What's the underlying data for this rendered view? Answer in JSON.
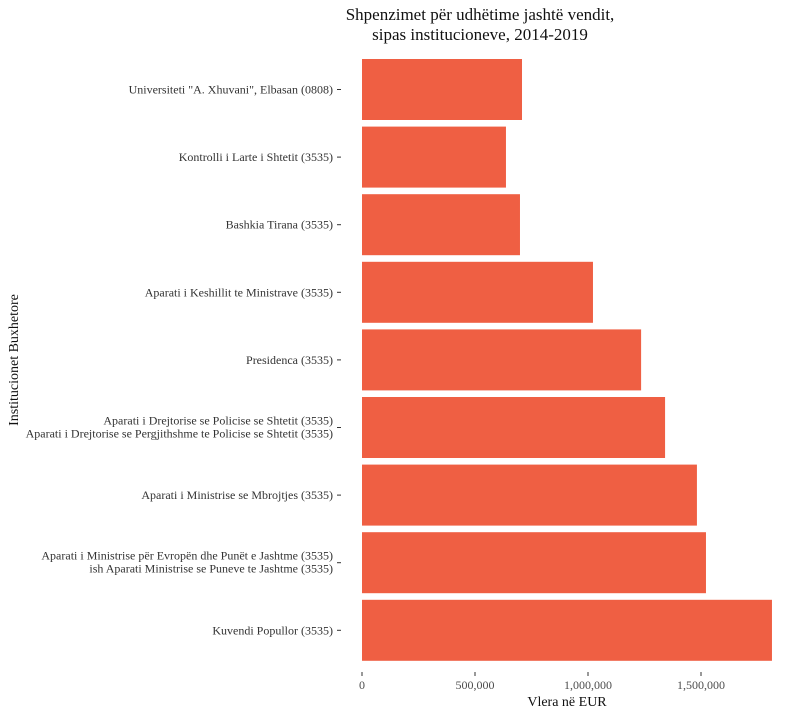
{
  "chart_data": {
    "type": "bar",
    "orientation": "horizontal",
    "title": [
      "Shpenzimet për udhëtime jashtë vendit,",
      " sipas institucioneve, 2014-2019"
    ],
    "xlabel": "Vlera në EUR",
    "ylabel": "Institucionet Buxhetore",
    "xlim": [
      0,
      1814000
    ],
    "xticks": [
      0,
      500000,
      1000000,
      1500000
    ],
    "xtick_labels": [
      "0",
      "500,000",
      "1,000,000",
      "1,500,000"
    ],
    "grid": false,
    "bar_color": "#ef5f43",
    "categories": [
      [
        "Universiteti \"A. Xhuvani\", Elbasan (0808)"
      ],
      [
        "Kontrolli i Larte i Shtetit (3535)"
      ],
      [
        "Bashkia Tirana (3535)"
      ],
      [
        "Aparati i Keshillit te Ministrave (3535)"
      ],
      [
        "Presidenca (3535)"
      ],
      [
        "Aparati i Drejtorise se Policise se Shtetit (3535)",
        "Aparati i Drejtorise se Pergjithshme te Policise se Shtetit (3535)"
      ],
      [
        "Aparati i Ministrise se Mbrojtjes (3535)"
      ],
      [
        "Aparati i Ministrise për Evropën dhe Punët e Jashtme (3535)",
        "ish Aparati Ministrise se Puneve te Jashtme (3535)"
      ],
      [
        "Kuvendi Popullor (3535)"
      ]
    ],
    "values": [
      708000,
      637000,
      699000,
      1022000,
      1235000,
      1341000,
      1482000,
      1522000,
      1814000
    ]
  }
}
